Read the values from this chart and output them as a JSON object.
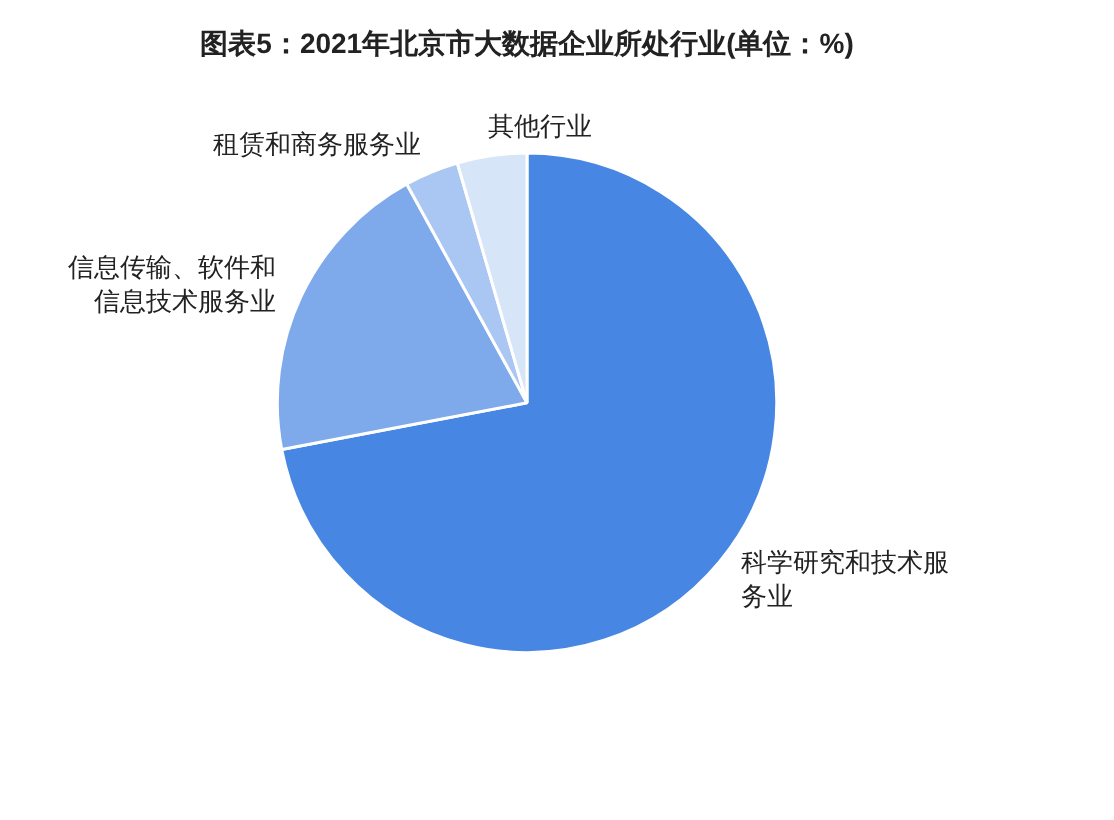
{
  "chart_data": {
    "type": "pie",
    "title": "图表5：2021年北京市大数据企业所处行业(单位：%)",
    "categories": [
      "科学研究和技术服务业",
      "信息传输、软件和信息技术服务业",
      "租赁和商务服务业",
      "其他行业"
    ],
    "values": [
      72,
      20,
      3.5,
      4.5
    ],
    "colors": [
      "#4787e3",
      "#7eaaec",
      "#aac7f3",
      "#d7e5f9"
    ],
    "legend": false
  }
}
